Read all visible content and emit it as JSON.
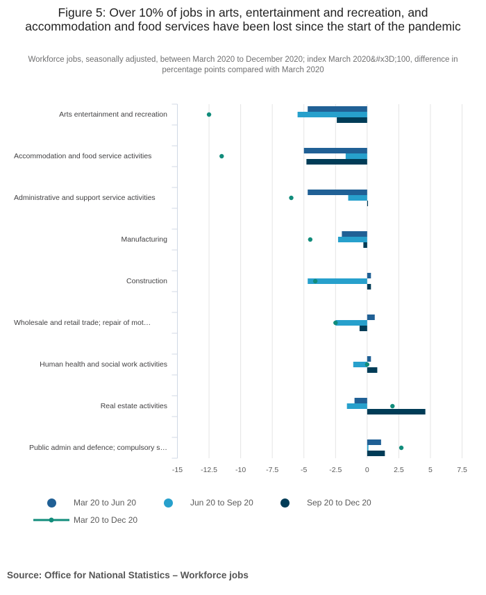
{
  "title": "Figure 5: Over 10% of jobs in arts, entertainment and recreation, and accommodation and food services have been lost since the start of the pandemic",
  "subtitle": "Workforce jobs, seasonally adjusted, between March 2020 to December 2020; index March 2020&#x3D;100, difference in percentage points compared with March 2020",
  "source": "Source: Office for National Statistics  –  Workforce jobs",
  "colors": {
    "mar_jun": "#206095",
    "jun_sep": "#27a0cc",
    "sep_dec": "#003c57",
    "mar_dec": "#118c7b"
  },
  "chart_data": {
    "type": "bar",
    "orientation": "horizontal",
    "title": "Figure 5: Over 10% of jobs in arts, entertainment and recreation, and accommodation and food services have been lost since the start of the pandemic",
    "xlim": [
      -15,
      7.5
    ],
    "xticks": [
      "-15",
      "-12.5",
      "-10",
      "-7.5",
      "-5",
      "-2.5",
      "0",
      "2.5",
      "5",
      "7.5"
    ],
    "xtick_values": [
      -15,
      -12.5,
      -10,
      -7.5,
      -5,
      -2.5,
      0,
      2.5,
      5,
      7.5
    ],
    "grid": true,
    "legend_position": "bottom-left",
    "categories": [
      "Arts entertainment and recreation",
      "Accommodation and food service activities",
      "Administrative and support service activities",
      "Manufacturing",
      "Construction",
      "Wholesale and retail trade; repair of mot…",
      "Human health and social work activities",
      "Real estate activities",
      "Public admin and defence; compulsory s…"
    ],
    "series": [
      {
        "name": "Mar 20 to Jun 20",
        "kind": "bar",
        "values": [
          -4.7,
          -5.0,
          -4.7,
          -2.0,
          0.3,
          0.6,
          0.3,
          -1.0,
          1.1
        ]
      },
      {
        "name": "Jun 20 to Sep 20",
        "kind": "bar",
        "values": [
          -5.5,
          -1.7,
          -1.5,
          -2.3,
          -4.7,
          -2.5,
          -1.1,
          -1.6,
          0.1
        ]
      },
      {
        "name": "Sep 20 to Dec 20",
        "kind": "bar",
        "values": [
          -2.4,
          -4.8,
          0.05,
          -0.3,
          0.3,
          -0.6,
          0.8,
          4.6,
          1.4
        ]
      },
      {
        "name": "Mar 20 to Dec 20",
        "kind": "point",
        "values": [
          -12.5,
          -11.5,
          -6.0,
          -4.5,
          -4.1,
          -2.5,
          0.0,
          2.0,
          2.7
        ]
      }
    ]
  }
}
